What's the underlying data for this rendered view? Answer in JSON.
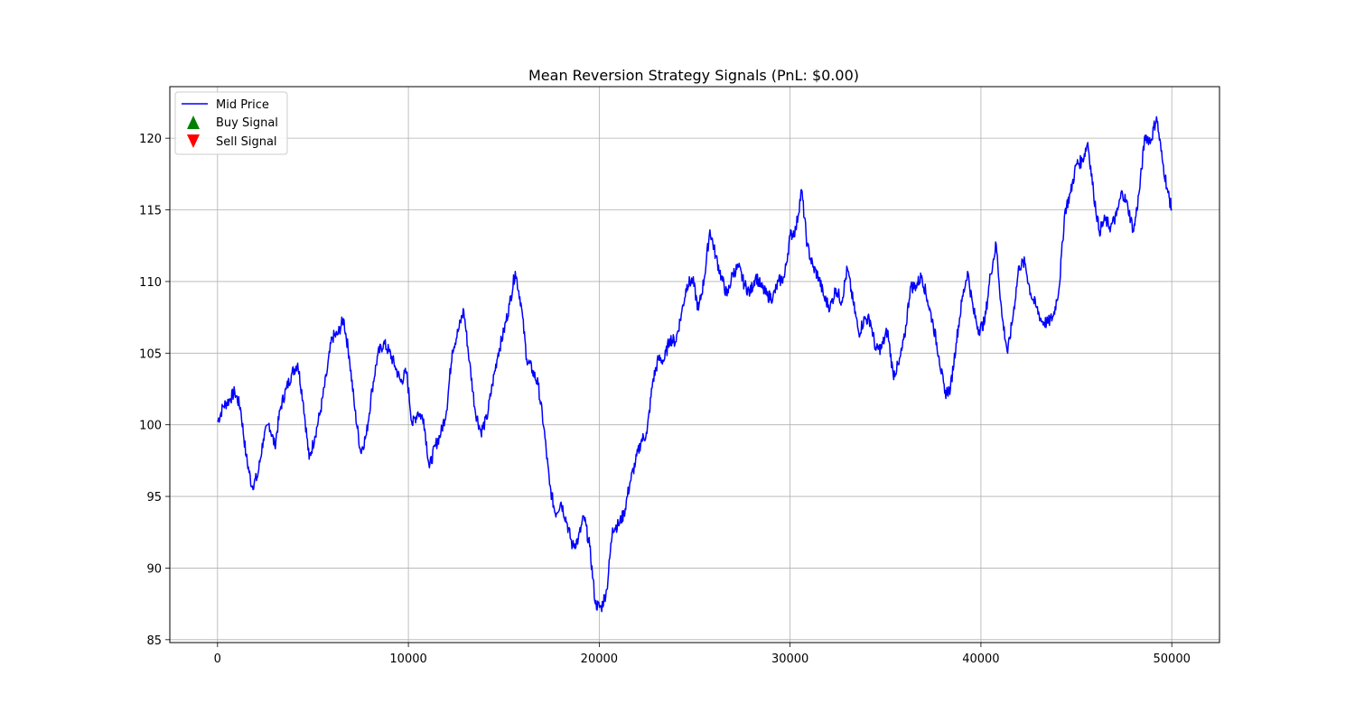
{
  "chart_data": {
    "type": "line",
    "title": "Mean Reversion Strategy Signals (PnL: $0.00)",
    "xlabel": "",
    "ylabel": "",
    "xlim": [
      -2500,
      52500
    ],
    "ylim": [
      84.8,
      123.6
    ],
    "xticks": [
      0,
      10000,
      20000,
      30000,
      40000,
      50000
    ],
    "yticks": [
      85,
      90,
      95,
      100,
      105,
      110,
      115,
      120
    ],
    "grid": true,
    "legend_position": "upper-left",
    "colors": {
      "line": "#0000ff",
      "buy": "#008000",
      "sell": "#ff0000",
      "grid": "#b0b0b0"
    },
    "series": [
      {
        "name": "Mid Price",
        "kind": "line",
        "x": [
          0,
          300,
          600,
          900,
          1200,
          1500,
          1800,
          2100,
          2400,
          2700,
          3000,
          3300,
          3600,
          3900,
          4200,
          4500,
          4800,
          5100,
          5400,
          5700,
          6000,
          6300,
          6600,
          6900,
          7200,
          7500,
          7800,
          8100,
          8400,
          8700,
          9000,
          9300,
          9600,
          9900,
          10200,
          10500,
          10800,
          11100,
          11400,
          11700,
          12000,
          12300,
          12600,
          12900,
          13200,
          13500,
          13800,
          14100,
          14400,
          14700,
          15000,
          15300,
          15600,
          15900,
          16200,
          16500,
          16800,
          17100,
          17400,
          17700,
          18000,
          18300,
          18600,
          18900,
          19200,
          19500,
          19800,
          20100,
          20400,
          20700,
          21000,
          21300,
          21600,
          21900,
          22200,
          22500,
          22800,
          23100,
          23400,
          23700,
          24000,
          24300,
          24600,
          24900,
          25200,
          25500,
          25800,
          26100,
          26400,
          26700,
          27000,
          27300,
          27600,
          27900,
          28200,
          28500,
          28800,
          29100,
          29400,
          29700,
          30000,
          30300,
          30600,
          30900,
          31200,
          31500,
          31800,
          32100,
          32400,
          32700,
          33000,
          33300,
          33600,
          33900,
          34200,
          34500,
          34800,
          35100,
          35400,
          35700,
          36000,
          36300,
          36600,
          36900,
          37200,
          37500,
          37800,
          38100,
          38400,
          38700,
          39000,
          39300,
          39600,
          39900,
          40200,
          40500,
          40800,
          41100,
          41400,
          41700,
          42000,
          42300,
          42600,
          42900,
          43200,
          43500,
          43800,
          44100,
          44400,
          44700,
          45000,
          45300,
          45600,
          45900,
          46200,
          46500,
          46800,
          47100,
          47400,
          47700,
          48000,
          48300,
          48600,
          48900,
          49200,
          49500,
          49800,
          50000
        ],
        "y": [
          100.2,
          101.3,
          101.7,
          102.3,
          101.2,
          97.8,
          95.7,
          96.4,
          99.0,
          100.1,
          98.5,
          101.2,
          102.5,
          103.6,
          104.3,
          101.5,
          97.6,
          99.2,
          101.0,
          103.4,
          106.1,
          106.3,
          107.4,
          104.8,
          101.0,
          98.1,
          99.3,
          102.5,
          104.9,
          105.7,
          105.1,
          104.1,
          103.0,
          103.7,
          100.0,
          100.9,
          100.4,
          97.0,
          98.5,
          99.4,
          101.0,
          105.2,
          106.5,
          108.0,
          104.4,
          101.0,
          99.5,
          100.4,
          102.8,
          105.0,
          106.5,
          108.4,
          110.7,
          108.5,
          104.6,
          103.8,
          102.8,
          99.8,
          95.8,
          93.8,
          94.6,
          93.2,
          91.5,
          92.0,
          93.6,
          91.5,
          87.5,
          87.2,
          88.5,
          92.8,
          93.0,
          93.8,
          95.9,
          97.4,
          98.9,
          99.4,
          103.0,
          104.6,
          104.5,
          106.0,
          105.8,
          107.7,
          109.8,
          110.1,
          108.0,
          110.2,
          113.6,
          111.8,
          110.3,
          109.0,
          110.6,
          111.0,
          109.8,
          109.2,
          110.4,
          109.6,
          109.0,
          108.9,
          110.0,
          110.3,
          113.2,
          113.6,
          116.4,
          112.5,
          111.0,
          110.3,
          108.8,
          108.2,
          109.5,
          108.6,
          110.9,
          108.6,
          106.4,
          107.4,
          107.3,
          105.2,
          105.4,
          106.6,
          103.5,
          104.2,
          106.1,
          109.6,
          109.7,
          110.4,
          108.7,
          107.0,
          104.8,
          102.2,
          102.5,
          105.7,
          108.6,
          110.7,
          108.0,
          106.6,
          107.2,
          110.5,
          112.6,
          107.6,
          105.0,
          107.8,
          111.1,
          111.3,
          109.2,
          108.2,
          107.2,
          107.1,
          107.6,
          109.6,
          114.9,
          116.2,
          118.2,
          118.4,
          119.7,
          116.2,
          113.5,
          114.3,
          113.8,
          114.6,
          116.3,
          115.2,
          113.5,
          116.3,
          120.2,
          119.8,
          121.5,
          118.5,
          116.2,
          115.0
        ]
      },
      {
        "name": "Buy Signal",
        "kind": "marker",
        "x": [],
        "y": []
      },
      {
        "name": "Sell Signal",
        "kind": "marker",
        "x": [],
        "y": []
      }
    ]
  }
}
